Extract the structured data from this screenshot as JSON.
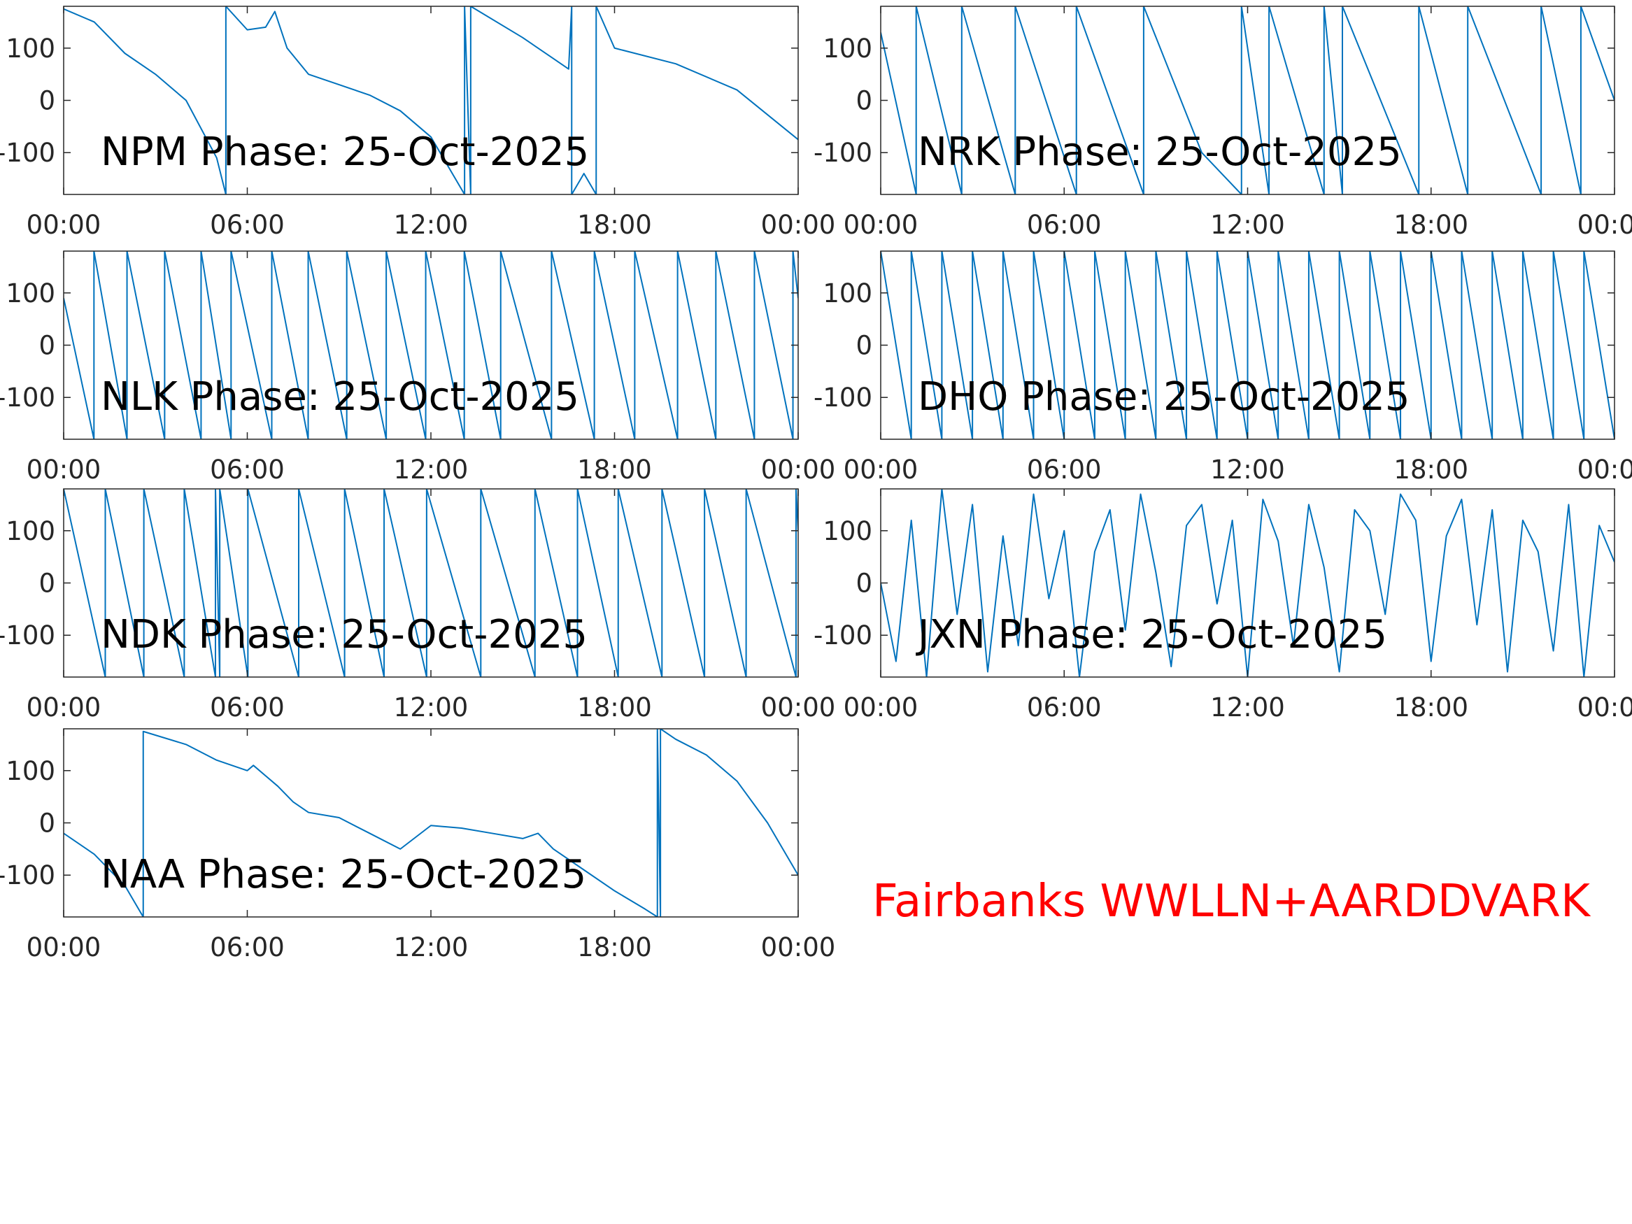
{
  "chart_data": [
    {
      "type": "line",
      "title": "NPM Phase: 25-Oct-2025",
      "color": "#0072bd",
      "x": [
        0,
        1,
        2,
        3,
        4,
        5,
        5.3,
        5.3,
        6,
        6.6,
        6.9,
        7.3,
        8,
        9,
        10,
        11,
        12,
        13.1,
        13.1,
        13.3,
        13.3,
        15,
        16,
        16.5,
        16.6,
        16.6,
        17,
        17.4,
        17.4,
        18,
        20,
        22,
        24
      ],
      "values": [
        175,
        150,
        90,
        50,
        0,
        -110,
        -180,
        180,
        135,
        140,
        170,
        100,
        50,
        30,
        10,
        -20,
        -70,
        -180,
        180,
        -180,
        180,
        120,
        80,
        60,
        180,
        -180,
        -140,
        -180,
        180,
        100,
        70,
        20,
        -75
      ],
      "xlim": [
        0,
        24
      ],
      "xticks": [
        {
          "value": 0,
          "label": "00:00"
        },
        {
          "value": 6,
          "label": "06:00"
        },
        {
          "value": 12,
          "label": "12:00"
        },
        {
          "value": 18,
          "label": "18:00"
        },
        {
          "value": 24,
          "label": "00:00"
        }
      ],
      "ylim": [
        -180,
        180
      ],
      "yticks": [
        -100,
        0,
        100
      ]
    },
    {
      "type": "line",
      "title": "NRK Phase: 25-Oct-2025",
      "color": "#0072bd",
      "x": [
        0,
        1.16,
        1.16,
        2.65,
        2.65,
        4.4,
        4.4,
        6.4,
        6.4,
        8.6,
        8.6,
        10.5,
        11.8,
        11.8,
        12.7,
        12.7,
        14.5,
        14.5,
        15.1,
        15.1,
        17.6,
        17.6,
        19.2,
        19.2,
        21.6,
        21.6,
        22.9,
        22.9,
        24
      ],
      "values": [
        130,
        -180,
        180,
        -180,
        180,
        -180,
        180,
        -180,
        180,
        -180,
        180,
        -100,
        -180,
        180,
        -180,
        180,
        -180,
        180,
        -180,
        180,
        -180,
        180,
        -180,
        180,
        -180,
        180,
        -180,
        180,
        0
      ],
      "xlim": [
        0,
        24
      ],
      "xticks": [
        {
          "value": 0,
          "label": "00:00"
        },
        {
          "value": 6,
          "label": "06:00"
        },
        {
          "value": 12,
          "label": "12:00"
        },
        {
          "value": 18,
          "label": "18:00"
        },
        {
          "value": 24,
          "label": "00:00"
        }
      ],
      "ylim": [
        -180,
        180
      ],
      "yticks": [
        -100,
        0,
        100
      ]
    },
    {
      "type": "line",
      "title": "NLK Phase: 25-Oct-2025",
      "color": "#0072bd",
      "x": [
        0,
        0.99,
        0.99,
        2.07,
        2.07,
        3.3,
        3.3,
        4.49,
        4.49,
        5.47,
        5.47,
        6.8,
        6.8,
        7.99,
        7.99,
        9.25,
        9.25,
        10.54,
        10.54,
        11.83,
        11.83,
        13.09,
        13.09,
        14.28,
        14.28,
        15.94,
        15.94,
        17.34,
        17.34,
        18.66,
        18.66,
        20.06,
        20.06,
        21.31,
        21.31,
        22.57,
        22.57,
        23.83,
        23.83,
        24
      ],
      "values": [
        90,
        -180,
        180,
        -180,
        180,
        -180,
        180,
        -180,
        180,
        -180,
        180,
        -180,
        180,
        -180,
        180,
        -180,
        180,
        -180,
        180,
        -180,
        180,
        -180,
        180,
        -180,
        180,
        -180,
        180,
        -180,
        180,
        -180,
        180,
        -180,
        180,
        -180,
        180,
        -180,
        180,
        -180,
        180,
        90
      ],
      "xlim": [
        0,
        24
      ],
      "xticks": [
        {
          "value": 0,
          "label": "00:00"
        },
        {
          "value": 6,
          "label": "06:00"
        },
        {
          "value": 12,
          "label": "12:00"
        },
        {
          "value": 18,
          "label": "18:00"
        },
        {
          "value": 24,
          "label": "00:00"
        }
      ],
      "ylim": [
        -180,
        180
      ],
      "yticks": [
        -100,
        0,
        100
      ]
    },
    {
      "type": "line",
      "title": "DHO Phase: 25-Oct-2025",
      "color": "#0072bd",
      "x": [
        0,
        1,
        1,
        2,
        2,
        3,
        3,
        4,
        4,
        5,
        5,
        6,
        6,
        7,
        7,
        8,
        8,
        9,
        9,
        10,
        10,
        11,
        11,
        12,
        12,
        13,
        13,
        14,
        14,
        15,
        15,
        16,
        16,
        17,
        17,
        18,
        18,
        19,
        19,
        20,
        20,
        21,
        21,
        22,
        22,
        23,
        23,
        24
      ],
      "values": [
        180,
        -180,
        180,
        -180,
        180,
        -180,
        180,
        -180,
        180,
        -180,
        180,
        -180,
        180,
        -180,
        180,
        -180,
        180,
        -180,
        180,
        -180,
        180,
        -180,
        180,
        -180,
        180,
        -180,
        180,
        -180,
        180,
        -180,
        180,
        -180,
        180,
        -180,
        180,
        -180,
        180,
        -180,
        180,
        -180,
        180,
        -180,
        180,
        -180,
        180,
        -180,
        180,
        -180
      ],
      "xlim": [
        0,
        24
      ],
      "xticks": [
        {
          "value": 0,
          "label": "00:00"
        },
        {
          "value": 6,
          "label": "06:00"
        },
        {
          "value": 12,
          "label": "12:00"
        },
        {
          "value": 18,
          "label": "18:00"
        },
        {
          "value": 24,
          "label": "00:00"
        }
      ],
      "ylim": [
        -180,
        180
      ],
      "yticks": [
        -100,
        0,
        100
      ]
    },
    {
      "type": "line",
      "title": "NDK Phase: 25-Oct-2025",
      "color": "#0072bd",
      "x": [
        0,
        1.36,
        1.36,
        2.62,
        2.62,
        3.94,
        3.94,
        4.96,
        4.96,
        5.1,
        5.1,
        6.02,
        6.02,
        7.68,
        7.68,
        9.18,
        9.18,
        10.47,
        10.47,
        11.86,
        11.86,
        13.63,
        13.63,
        15.4,
        15.4,
        16.79,
        16.79,
        18.12,
        18.12,
        19.55,
        19.55,
        20.94,
        20.94,
        22.3,
        22.3,
        23.93,
        23.93,
        24
      ],
      "values": [
        180,
        -180,
        180,
        -180,
        180,
        -180,
        180,
        -180,
        180,
        -180,
        180,
        -180,
        180,
        -180,
        180,
        -180,
        180,
        -180,
        180,
        -180,
        180,
        -180,
        180,
        -180,
        180,
        -180,
        180,
        -180,
        180,
        -180,
        180,
        -180,
        180,
        -180,
        180,
        -180,
        180,
        100
      ],
      "xlim": [
        0,
        24
      ],
      "xticks": [
        {
          "value": 0,
          "label": "00:00"
        },
        {
          "value": 6,
          "label": "06:00"
        },
        {
          "value": 12,
          "label": "12:00"
        },
        {
          "value": 18,
          "label": "18:00"
        },
        {
          "value": 24,
          "label": "00:00"
        }
      ],
      "ylim": [
        -180,
        180
      ],
      "yticks": [
        -100,
        0,
        100
      ]
    },
    {
      "type": "line",
      "title": "JXN Phase: 25-Oct-2025",
      "color": "#0072bd",
      "x": [
        0,
        0.5,
        1,
        1.5,
        2,
        2.5,
        3,
        3.5,
        4,
        4.5,
        5,
        5.5,
        6,
        6.5,
        7,
        7.5,
        8,
        8.5,
        9,
        9.5,
        10,
        10.5,
        11,
        11.5,
        12,
        12.5,
        13,
        13.5,
        14,
        14.5,
        15,
        15.5,
        16,
        16.5,
        17,
        17.5,
        18,
        18.5,
        19,
        19.5,
        20,
        20.5,
        21,
        21.5,
        22,
        22.5,
        23,
        23.5,
        24
      ],
      "values": [
        0,
        -150,
        120,
        -180,
        180,
        -60,
        150,
        -170,
        90,
        -120,
        170,
        -30,
        100,
        -180,
        60,
        140,
        -90,
        170,
        20,
        -160,
        110,
        150,
        -40,
        120,
        -180,
        160,
        80,
        -120,
        150,
        30,
        -170,
        140,
        100,
        -60,
        170,
        120,
        -150,
        90,
        160,
        -80,
        140,
        -170,
        120,
        60,
        -130,
        150,
        -180,
        110,
        40
      ],
      "xlim": [
        0,
        24
      ],
      "xticks": [
        {
          "value": 0,
          "label": "00:00"
        },
        {
          "value": 6,
          "label": "06:00"
        },
        {
          "value": 12,
          "label": "12:00"
        },
        {
          "value": 18,
          "label": "18:00"
        },
        {
          "value": 24,
          "label": "00:00"
        }
      ],
      "ylim": [
        -180,
        180
      ],
      "yticks": [
        -100,
        0,
        100
      ]
    },
    {
      "type": "line",
      "title": "NAA Phase: 25-Oct-2025",
      "color": "#0072bd",
      "x": [
        0,
        1,
        2,
        2.6,
        2.6,
        4,
        5,
        6,
        6.2,
        7,
        7.5,
        8,
        9,
        10,
        11,
        12,
        13,
        14,
        15,
        15.5,
        16,
        17,
        18,
        19,
        19.4,
        19.4,
        19.5,
        19.5,
        20,
        21,
        22,
        23,
        24
      ],
      "values": [
        -20,
        -60,
        -120,
        -180,
        175,
        150,
        120,
        100,
        110,
        70,
        40,
        20,
        10,
        -20,
        -50,
        -5,
        -10,
        -20,
        -30,
        -20,
        -50,
        -90,
        -130,
        -165,
        -180,
        180,
        -180,
        180,
        160,
        130,
        80,
        0,
        -100
      ],
      "xlim": [
        0,
        24
      ],
      "xticks": [
        {
          "value": 0,
          "label": "00:00"
        },
        {
          "value": 6,
          "label": "06:00"
        },
        {
          "value": 12,
          "label": "12:00"
        },
        {
          "value": 18,
          "label": "18:00"
        },
        {
          "value": 24,
          "label": "00:00"
        }
      ],
      "ylim": [
        -180,
        180
      ],
      "yticks": [
        -100,
        0,
        100
      ]
    }
  ],
  "annotation": {
    "text": "Fairbanks WWLLN+AARDDVARK",
    "color": "#ff0000"
  }
}
